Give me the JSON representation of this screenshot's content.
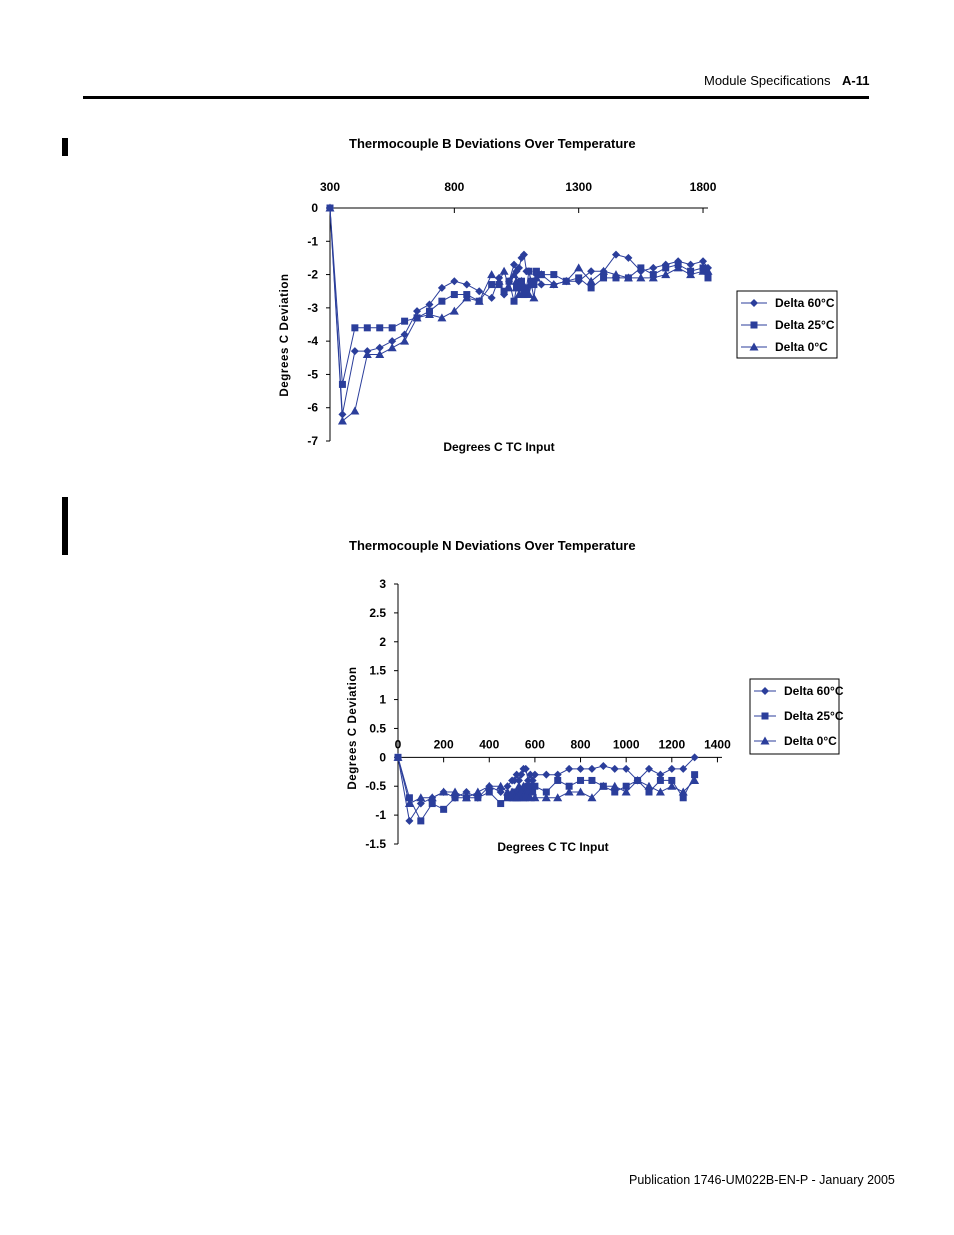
{
  "header": {
    "section": "Module Specifications",
    "page": "A-11"
  },
  "footer": {
    "publication": "Publication 1746-UM022B-EN-P - January 2005"
  },
  "colors": {
    "series": "#2B3E9B",
    "axis": "#000000"
  },
  "chart_data": [
    {
      "type": "line",
      "title": "Thermocouple B Deviations Over Temperature",
      "xlabel": "Degrees C TC Input",
      "ylabel": "Degrees C Deviation",
      "xlim": [
        300,
        1820
      ],
      "ylim": [
        -7,
        0
      ],
      "xticks": [
        300,
        800,
        1300,
        1800
      ],
      "yticks": [
        0,
        -1,
        -2,
        -3,
        -4,
        -5,
        -6,
        -7
      ],
      "x_axis_position": "top",
      "grid": false,
      "legend": "right",
      "series": [
        {
          "name": "Delta 60°C",
          "marker": "diamond",
          "x": [
            300,
            350,
            400,
            450,
            500,
            550,
            600,
            650,
            700,
            750,
            800,
            850,
            900,
            950,
            980,
            1000,
            1020,
            1040,
            1050,
            1060,
            1070,
            1080,
            1090,
            1100,
            1110,
            1120,
            1130,
            1150,
            1200,
            1250,
            1300,
            1350,
            1400,
            1450,
            1500,
            1550,
            1600,
            1650,
            1700,
            1750,
            1800,
            1820
          ],
          "y": [
            0,
            -6.2,
            -4.3,
            -4.3,
            -4.2,
            -4.0,
            -3.8,
            -3.1,
            -2.9,
            -2.4,
            -2.2,
            -2.3,
            -2.5,
            -2.7,
            -2.1,
            -2.6,
            -2.2,
            -1.7,
            -1.9,
            -1.8,
            -1.5,
            -1.4,
            -1.9,
            -1.9,
            -2.3,
            -2.2,
            -2.0,
            -2.3,
            -2.3,
            -2.2,
            -2.2,
            -1.9,
            -1.9,
            -1.4,
            -1.5,
            -1.9,
            -1.8,
            -1.7,
            -1.6,
            -1.7,
            -1.6,
            -1.8
          ]
        },
        {
          "name": "Delta 25°C",
          "marker": "square",
          "x": [
            300,
            350,
            400,
            450,
            500,
            550,
            600,
            650,
            700,
            750,
            800,
            850,
            900,
            950,
            980,
            1000,
            1020,
            1040,
            1050,
            1060,
            1070,
            1080,
            1090,
            1100,
            1110,
            1120,
            1130,
            1150,
            1200,
            1250,
            1300,
            1350,
            1400,
            1450,
            1500,
            1550,
            1600,
            1650,
            1700,
            1750,
            1800,
            1820
          ],
          "y": [
            0,
            -5.3,
            -3.6,
            -3.6,
            -3.6,
            -3.6,
            -3.4,
            -3.3,
            -3.1,
            -2.8,
            -2.6,
            -2.6,
            -2.8,
            -2.3,
            -2.3,
            -2.5,
            -2.2,
            -2.8,
            -2.4,
            -2.4,
            -2.2,
            -2.6,
            -2.4,
            -1.9,
            -2.2,
            -2.3,
            -1.9,
            -2.0,
            -2.0,
            -2.2,
            -2.1,
            -2.4,
            -2.1,
            -2.1,
            -2.1,
            -1.8,
            -2.0,
            -1.8,
            -1.7,
            -1.9,
            -1.8,
            -2.1
          ]
        },
        {
          "name": "Delta 0°C",
          "marker": "triangle",
          "x": [
            300,
            350,
            400,
            450,
            500,
            550,
            600,
            650,
            700,
            750,
            800,
            850,
            900,
            950,
            980,
            1000,
            1020,
            1040,
            1050,
            1060,
            1070,
            1080,
            1090,
            1100,
            1110,
            1120,
            1130,
            1150,
            1200,
            1250,
            1300,
            1350,
            1400,
            1450,
            1500,
            1550,
            1600,
            1650,
            1700,
            1750,
            1800,
            1820
          ],
          "y": [
            0,
            -6.4,
            -6.1,
            -4.4,
            -4.4,
            -4.2,
            -4.0,
            -3.3,
            -3.2,
            -3.3,
            -3.1,
            -2.7,
            -2.8,
            -2.0,
            -2.2,
            -1.9,
            -2.4,
            -2.0,
            -2.2,
            -2.6,
            -2.2,
            -2.4,
            -2.5,
            -2.6,
            -2.3,
            -2.7,
            -2.1,
            -2.0,
            -2.3,
            -2.2,
            -1.8,
            -2.2,
            -1.9,
            -2.0,
            -2.1,
            -2.1,
            -2.1,
            -2.0,
            -1.8,
            -2.0,
            -1.9,
            -1.9
          ]
        }
      ]
    },
    {
      "type": "line",
      "title": "Thermocouple N Deviations Over Temperature",
      "xlabel": "Degrees C TC Input",
      "ylabel": "Degrees C Deviation",
      "xlim": [
        0,
        1420
      ],
      "ylim": [
        -1.5,
        3
      ],
      "xticks": [
        0,
        200,
        400,
        600,
        800,
        1000,
        1200,
        1400
      ],
      "yticks": [
        3,
        2.5,
        2,
        1.5,
        1,
        0.5,
        0,
        -0.5,
        -1,
        -1.5
      ],
      "x_axis_position": "zero",
      "grid": false,
      "legend": "right",
      "series": [
        {
          "name": "Delta 60°C",
          "marker": "diamond",
          "x": [
            0,
            50,
            100,
            150,
            200,
            250,
            300,
            350,
            400,
            450,
            480,
            500,
            510,
            520,
            530,
            540,
            550,
            560,
            570,
            580,
            590,
            600,
            650,
            700,
            750,
            800,
            850,
            900,
            950,
            1000,
            1050,
            1100,
            1150,
            1200,
            1250,
            1300
          ],
          "y": [
            0,
            -1.1,
            -0.8,
            -0.7,
            -0.6,
            -0.7,
            -0.6,
            -0.7,
            -0.5,
            -0.6,
            -0.5,
            -0.4,
            -0.4,
            -0.3,
            -0.4,
            -0.3,
            -0.2,
            -0.2,
            -0.4,
            -0.3,
            -0.4,
            -0.3,
            -0.3,
            -0.3,
            -0.2,
            -0.2,
            -0.2,
            -0.15,
            -0.2,
            -0.2,
            -0.4,
            -0.2,
            -0.3,
            -0.2,
            -0.2,
            0
          ]
        },
        {
          "name": "Delta 25°C",
          "marker": "square",
          "x": [
            0,
            50,
            100,
            150,
            200,
            250,
            300,
            350,
            400,
            450,
            480,
            500,
            510,
            520,
            530,
            540,
            550,
            560,
            570,
            580,
            590,
            600,
            650,
            700,
            750,
            800,
            850,
            900,
            950,
            1000,
            1050,
            1100,
            1150,
            1200,
            1250,
            1300
          ],
          "y": [
            0,
            -0.7,
            -1.1,
            -0.8,
            -0.9,
            -0.7,
            -0.7,
            -0.7,
            -0.6,
            -0.8,
            -0.7,
            -0.7,
            -0.6,
            -0.7,
            -0.7,
            -0.6,
            -0.7,
            -0.7,
            -0.5,
            -0.6,
            -0.6,
            -0.5,
            -0.6,
            -0.4,
            -0.5,
            -0.4,
            -0.4,
            -0.5,
            -0.6,
            -0.5,
            -0.4,
            -0.6,
            -0.4,
            -0.4,
            -0.7,
            -0.3
          ]
        },
        {
          "name": "Delta 0°C",
          "marker": "triangle",
          "x": [
            0,
            50,
            100,
            150,
            200,
            250,
            300,
            350,
            400,
            450,
            480,
            500,
            510,
            520,
            530,
            540,
            550,
            560,
            570,
            580,
            590,
            600,
            650,
            700,
            750,
            800,
            850,
            900,
            950,
            1000,
            1050,
            1100,
            1150,
            1200,
            1250,
            1300
          ],
          "y": [
            0,
            -0.8,
            -0.7,
            -0.7,
            -0.6,
            -0.6,
            -0.7,
            -0.6,
            -0.5,
            -0.5,
            -0.6,
            -0.6,
            -0.7,
            -0.7,
            -0.5,
            -0.6,
            -0.5,
            -0.6,
            -0.6,
            -0.7,
            -0.6,
            -0.7,
            -0.7,
            -0.7,
            -0.6,
            -0.6,
            -0.7,
            -0.5,
            -0.5,
            -0.6,
            -0.4,
            -0.5,
            -0.6,
            -0.5,
            -0.6,
            -0.4
          ]
        }
      ]
    }
  ]
}
